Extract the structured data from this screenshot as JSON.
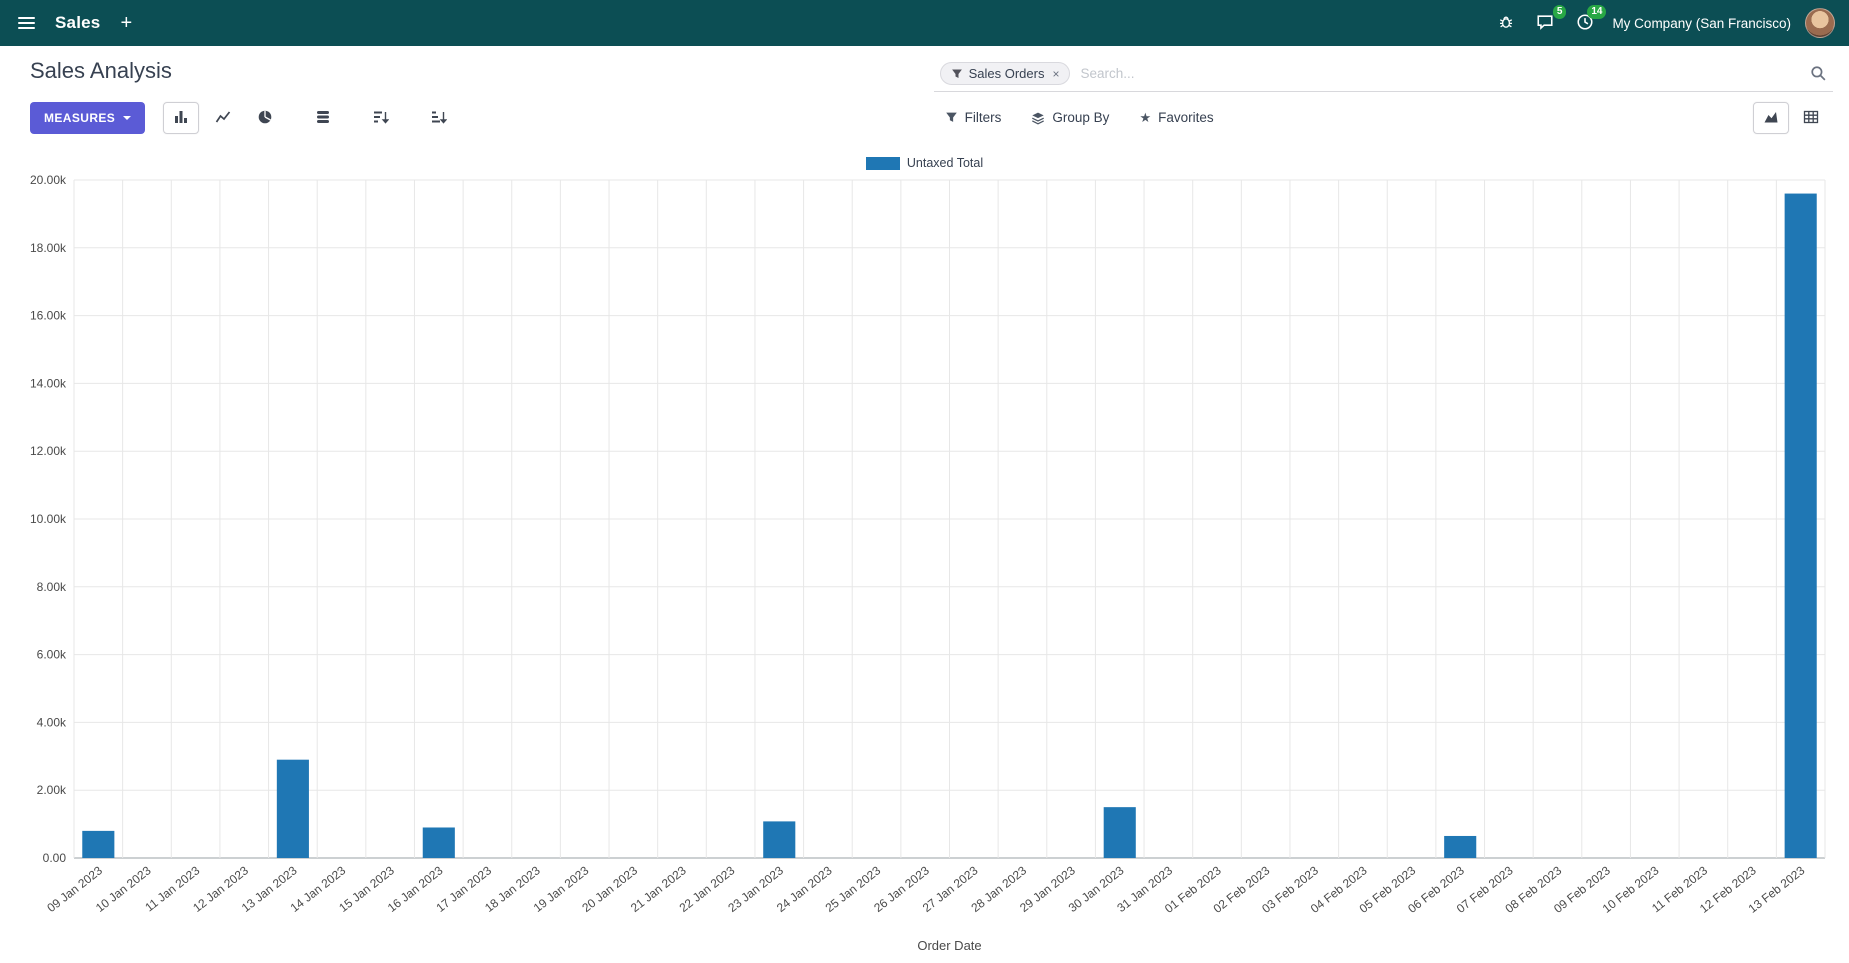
{
  "navbar": {
    "app_name": "Sales",
    "plus_label": "+",
    "messages_badge": "5",
    "activities_badge": "14",
    "company": "My Company (San Francisco)"
  },
  "control_panel": {
    "title": "Sales Analysis",
    "search": {
      "facet_label": "Sales Orders",
      "remove_label": "×",
      "placeholder": "Search..."
    },
    "measures_label": "MEASURES",
    "filters_label": "Filters",
    "group_by_label": "Group By",
    "favorites_label": "Favorites"
  },
  "icons": {
    "star": "★"
  },
  "colors": {
    "navbar_bg": "#0c4e54",
    "accent": "#5b5bd6",
    "bar": "#1f77b4",
    "badge": "#28a745",
    "grid": "#e7e7e7"
  },
  "chart_data": {
    "type": "bar",
    "title": "",
    "xlabel": "Order Date",
    "ylabel": "",
    "ylim": [
      0,
      20000
    ],
    "ytick_step": 2000,
    "ytick_labels": [
      "0.00",
      "2.00k",
      "4.00k",
      "6.00k",
      "8.00k",
      "10.00k",
      "12.00k",
      "14.00k",
      "16.00k",
      "18.00k",
      "20.00k"
    ],
    "grid": true,
    "legend_position": "top",
    "categories": [
      "09 Jan 2023",
      "10 Jan 2023",
      "11 Jan 2023",
      "12 Jan 2023",
      "13 Jan 2023",
      "14 Jan 2023",
      "15 Jan 2023",
      "16 Jan 2023",
      "17 Jan 2023",
      "18 Jan 2023",
      "19 Jan 2023",
      "20 Jan 2023",
      "21 Jan 2023",
      "22 Jan 2023",
      "23 Jan 2023",
      "24 Jan 2023",
      "25 Jan 2023",
      "26 Jan 2023",
      "27 Jan 2023",
      "28 Jan 2023",
      "29 Jan 2023",
      "30 Jan 2023",
      "31 Jan 2023",
      "01 Feb 2023",
      "02 Feb 2023",
      "03 Feb 2023",
      "04 Feb 2023",
      "05 Feb 2023",
      "06 Feb 2023",
      "07 Feb 2023",
      "08 Feb 2023",
      "09 Feb 2023",
      "10 Feb 2023",
      "11 Feb 2023",
      "12 Feb 2023",
      "13 Feb 2023"
    ],
    "series": [
      {
        "name": "Untaxed Total",
        "color": "#1f77b4",
        "values": [
          800,
          0,
          0,
          0,
          2900,
          0,
          0,
          900,
          0,
          0,
          0,
          0,
          0,
          0,
          1080,
          0,
          0,
          0,
          0,
          0,
          0,
          1500,
          0,
          0,
          0,
          0,
          0,
          0,
          650,
          0,
          0,
          0,
          0,
          0,
          0,
          19600
        ]
      }
    ]
  }
}
